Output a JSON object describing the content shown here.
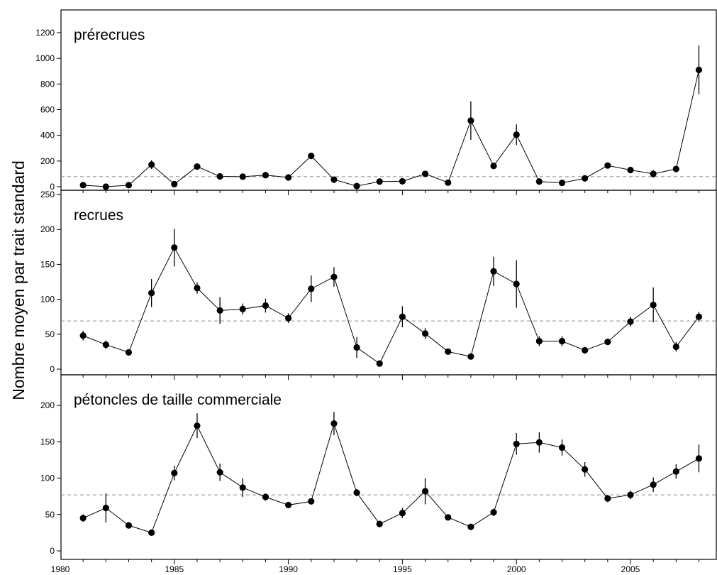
{
  "chart_data": {
    "type": "scatter",
    "ylabel": "Nombre moyen par trait standard",
    "x_ticks": [
      1980,
      1985,
      1990,
      1995,
      2000,
      2005
    ],
    "xlim": [
      1980,
      2009.2
    ],
    "grid": false,
    "panels": [
      {
        "title": "prérecrues",
        "ylim": [
          -30,
          1300
        ],
        "y_ticks": [
          0,
          200,
          400,
          600,
          800,
          1000,
          1200
        ],
        "reference_line": 78,
        "x": [
          1981,
          1982,
          1983,
          1984,
          1985,
          1986,
          1987,
          1988,
          1989,
          1990,
          1991,
          1992,
          1993,
          1994,
          1995,
          1996,
          1997,
          1998,
          1999,
          2000,
          2001,
          2002,
          2003,
          2004,
          2005,
          2006,
          2007,
          2008
        ],
        "y": [
          12,
          0,
          12,
          172,
          20,
          157,
          80,
          78,
          90,
          72,
          240,
          55,
          5,
          40,
          42,
          100,
          32,
          515,
          162,
          405,
          40,
          30,
          65,
          165,
          130,
          100,
          138,
          910
        ],
        "err": [
          6,
          6,
          6,
          35,
          8,
          18,
          10,
          8,
          12,
          10,
          20,
          10,
          5,
          8,
          8,
          20,
          8,
          150,
          25,
          80,
          8,
          6,
          10,
          15,
          15,
          30,
          15,
          190
        ]
      },
      {
        "title": "recrues",
        "ylim": [
          -7,
          250
        ],
        "y_ticks": [
          0,
          50,
          100,
          150,
          200,
          250
        ],
        "reference_line": 69,
        "x": [
          1981,
          1982,
          1983,
          1984,
          1985,
          1986,
          1987,
          1988,
          1989,
          1990,
          1991,
          1992,
          1993,
          1994,
          1995,
          1996,
          1997,
          1998,
          1999,
          2000,
          2001,
          2002,
          2003,
          2004,
          2005,
          2006,
          2007,
          2008
        ],
        "y": [
          48,
          35,
          24,
          109,
          174,
          116,
          84,
          86,
          91,
          73,
          115,
          132,
          31,
          8,
          75,
          51,
          25,
          18,
          140,
          122,
          40,
          40,
          27,
          39,
          68,
          92,
          32,
          75
        ],
        "err": [
          7,
          6,
          3,
          20,
          27,
          8,
          19,
          8,
          10,
          7,
          19,
          14,
          15,
          3,
          15,
          8,
          3,
          3,
          21,
          34,
          7,
          7,
          5,
          4,
          7,
          25,
          7,
          7
        ]
      },
      {
        "title": "pétoncles de taille commerciale",
        "ylim": [
          -5,
          230
        ],
        "y_ticks": [
          0,
          50,
          100,
          150,
          200
        ],
        "reference_line": 77,
        "x": [
          1981,
          1982,
          1983,
          1984,
          1985,
          1986,
          1987,
          1988,
          1989,
          1990,
          1991,
          1992,
          1993,
          1994,
          1995,
          1996,
          1997,
          1998,
          1999,
          2000,
          2001,
          2002,
          2003,
          2004,
          2005,
          2006,
          2007,
          2008
        ],
        "y": [
          45,
          59,
          35,
          25,
          107,
          172,
          108,
          87,
          74,
          63,
          68,
          175,
          80,
          37,
          52,
          82,
          46,
          33,
          53,
          147,
          149,
          142,
          112,
          72,
          77,
          91,
          109,
          127
        ],
        "err": [
          5,
          20,
          3,
          3,
          10,
          17,
          12,
          13,
          5,
          3,
          3,
          16,
          5,
          3,
          7,
          18,
          3,
          3,
          5,
          15,
          14,
          11,
          10,
          5,
          6,
          10,
          10,
          19
        ]
      }
    ]
  }
}
